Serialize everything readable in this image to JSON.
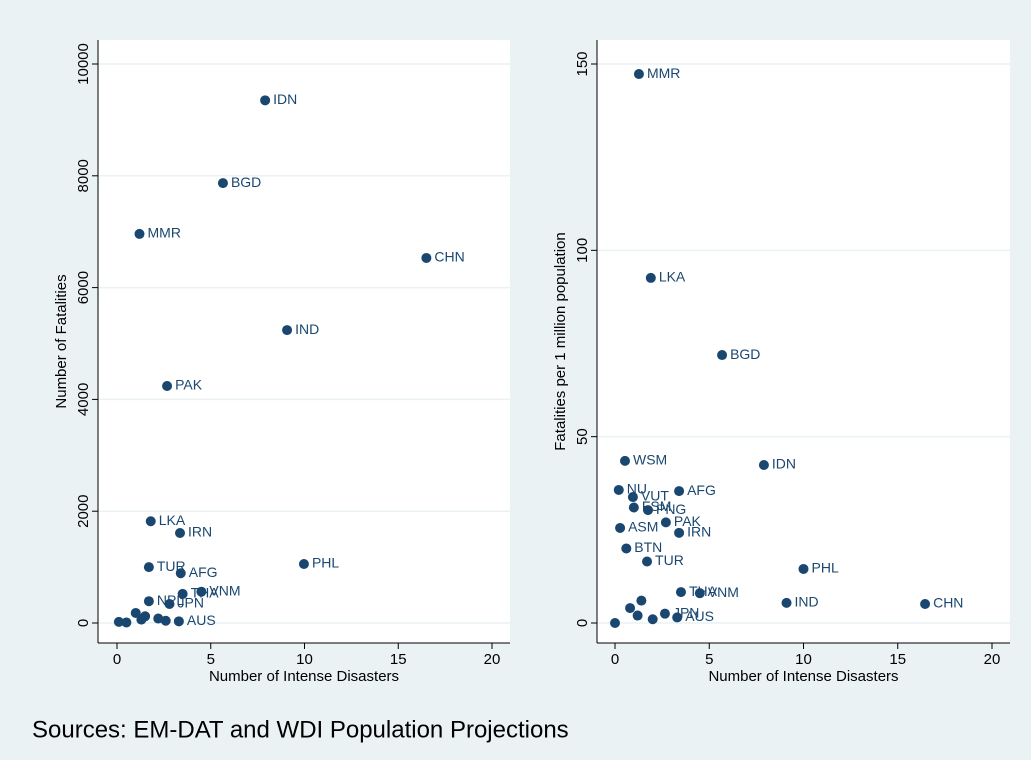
{
  "note": "Sources: EM-DAT and WDI Population Projections",
  "chart_data": [
    {
      "type": "scatter",
      "x_label": "Number of Intense Disasters",
      "y_label": "Number of Fatalities",
      "xlim": [
        0,
        20
      ],
      "xticks": [
        0,
        5,
        10,
        15,
        20
      ],
      "ylim": [
        0,
        10000
      ],
      "yticks": [
        0,
        2000,
        4000,
        6000,
        8000,
        10000
      ],
      "grid": true,
      "x": [
        7.9,
        5.65,
        1.2,
        16.5,
        9.07,
        2.67,
        1.8,
        3.36,
        9.97,
        1.7,
        3.4,
        3.5,
        4.5,
        1.7,
        2.8,
        3.3,
        1.0,
        0.1,
        0.5,
        1.3,
        2.2,
        2.6,
        1.5
      ],
      "series": [
        {
          "color": "#1a476f",
          "values": [
            9350,
            7870,
            6960,
            6530,
            5240,
            4240,
            1820,
            1610,
            1055,
            1000,
            890,
            520,
            560,
            390,
            340,
            30,
            180,
            20,
            10,
            60,
            80,
            40,
            120
          ],
          "point_labels": [
            "IDN",
            "BGD",
            "MMR",
            "CHN",
            "IND",
            "PAK",
            "LKA",
            "IRN",
            "PHL",
            "TUR",
            "AFG",
            "THA",
            "VNM",
            "NPL",
            "JPN",
            "AUS",
            null,
            null,
            null,
            null,
            null,
            null,
            null
          ]
        }
      ]
    },
    {
      "type": "scatter",
      "x_label": "Number of Intense Disasters",
      "y_label": "Fatalities per 1 million population",
      "xlim": [
        0,
        20
      ],
      "xticks": [
        0,
        5,
        10,
        15,
        20
      ],
      "ylim": [
        0,
        150
      ],
      "yticks": [
        0,
        50,
        100,
        150
      ],
      "grid": true,
      "x": [
        1.27,
        1.9,
        5.68,
        0.53,
        7.9,
        0.2,
        3.4,
        0.95,
        1.0,
        1.75,
        2.7,
        0.27,
        3.4,
        0.6,
        1.7,
        10,
        3.5,
        4.5,
        9.1,
        16.45,
        2.65,
        3.3,
        0,
        0.8,
        1.2,
        2.0,
        1.4
      ],
      "series": [
        {
          "color": "#1a476f",
          "values": [
            147.3,
            92.6,
            71.9,
            43.5,
            42.4,
            35.7,
            35.4,
            33.8,
            31,
            30.3,
            27,
            25.5,
            24.2,
            20,
            16.5,
            14.5,
            8.3,
            8,
            5.4,
            5.1,
            2.5,
            1.5,
            0,
            4,
            2,
            1,
            6
          ],
          "point_labels": [
            "MMR",
            "LKA",
            "BGD",
            "WSM",
            "IDN",
            "NU",
            "AFG",
            "VUT",
            "FSM",
            "PNG",
            "PAK",
            "ASM",
            "IRN",
            "BTN",
            "TUR",
            "PHL",
            "THA",
            "VNM",
            "IND",
            "CHN",
            "JPN",
            "AUS",
            null,
            null,
            null,
            null,
            null
          ]
        }
      ]
    }
  ]
}
